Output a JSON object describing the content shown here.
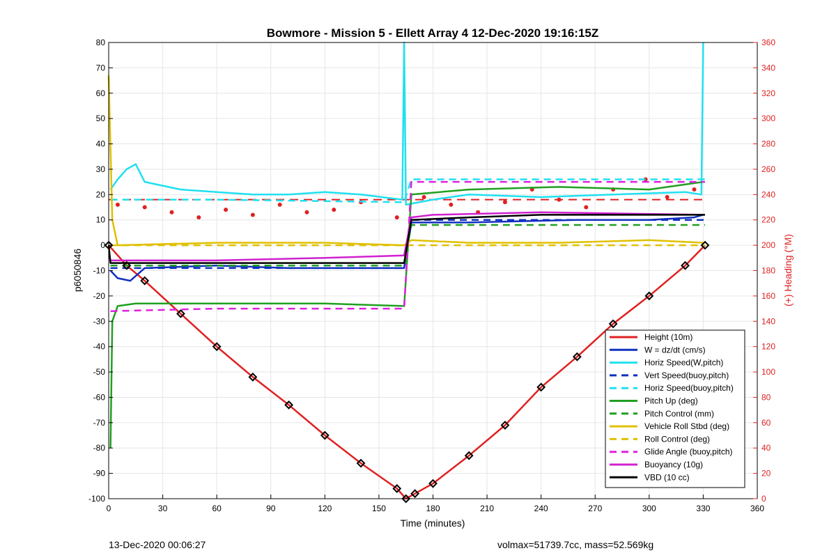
{
  "chart_data": {
    "type": "line",
    "title": "Bowmore - Mission 5 - Ellett Array 4 12-Dec-2020 19:16:15Z",
    "xlabel": "Time (minutes)",
    "ylabel_left": "p6050846",
    "ylabel_right": "(+) Heading (°M)",
    "xlim": [
      0,
      360
    ],
    "ylim_left": [
      -100,
      80
    ],
    "ylim_right": [
      0,
      360
    ],
    "x_ticks": [
      0,
      30,
      60,
      90,
      120,
      150,
      180,
      210,
      240,
      270,
      300,
      330,
      360
    ],
    "y_left_ticks": [
      80,
      70,
      60,
      50,
      40,
      30,
      20,
      10,
      0,
      -10,
      -20,
      -30,
      -40,
      -50,
      -60,
      -70,
      -80,
      -90,
      -100
    ],
    "y_right_ticks": [
      360,
      340,
      320,
      300,
      280,
      260,
      240,
      220,
      200,
      180,
      160,
      140,
      120,
      100,
      80,
      60,
      40,
      20,
      0
    ],
    "grid": true,
    "legend_position": "bottom-right",
    "series": [
      {
        "name": "Height (10m)",
        "color": "#e02020",
        "style": "solid",
        "points": [
          [
            0,
            0
          ],
          [
            10,
            -8
          ],
          [
            20,
            -14
          ],
          [
            40,
            -27
          ],
          [
            60,
            -40
          ],
          [
            80,
            -52
          ],
          [
            100,
            -63
          ],
          [
            120,
            -75
          ],
          [
            140,
            -86
          ],
          [
            160,
            -96
          ],
          [
            165,
            -100
          ],
          [
            170,
            -98
          ],
          [
            180,
            -94
          ],
          [
            200,
            -83
          ],
          [
            220,
            -71
          ],
          [
            240,
            -56
          ],
          [
            260,
            -44
          ],
          [
            280,
            -31
          ],
          [
            300,
            -20
          ],
          [
            320,
            -8
          ],
          [
            331,
            0
          ]
        ]
      },
      {
        "name": "W = dz/dt (cm/s)",
        "color": "#1030c0",
        "style": "solid",
        "points": [
          [
            1,
            -10
          ],
          [
            5,
            -13
          ],
          [
            12,
            -14
          ],
          [
            20,
            -9
          ],
          [
            60,
            -8
          ],
          [
            100,
            -9
          ],
          [
            140,
            -9
          ],
          [
            164,
            -9
          ],
          [
            168,
            9
          ],
          [
            200,
            9
          ],
          [
            260,
            10
          ],
          [
            300,
            10
          ],
          [
            325,
            11
          ],
          [
            330,
            12
          ]
        ]
      },
      {
        "name": "Horiz Speed(W,pitch)",
        "color": "#20e0f0",
        "style": "solid",
        "points": [
          [
            1,
            22
          ],
          [
            5,
            26
          ],
          [
            10,
            30
          ],
          [
            15,
            32
          ],
          [
            20,
            25
          ],
          [
            40,
            22
          ],
          [
            60,
            21
          ],
          [
            80,
            20
          ],
          [
            100,
            20
          ],
          [
            120,
            21
          ],
          [
            140,
            20
          ],
          [
            163,
            18
          ],
          [
            164,
            80
          ],
          [
            165,
            16
          ],
          [
            180,
            18
          ],
          [
            200,
            20
          ],
          [
            240,
            19
          ],
          [
            280,
            20
          ],
          [
            320,
            21
          ],
          [
            329,
            20
          ],
          [
            330,
            80
          ]
        ]
      },
      {
        "name": "Vert Speed(buoy,pitch)",
        "color": "#1030c0",
        "style": "dashed",
        "points": [
          [
            1,
            -9
          ],
          [
            60,
            -9
          ],
          [
            164,
            -9
          ],
          [
            168,
            10
          ],
          [
            331,
            10
          ]
        ]
      },
      {
        "name": "Horiz Speed(buoy,pitch)",
        "color": "#20e0f0",
        "style": "dashed",
        "points": [
          [
            1,
            18
          ],
          [
            60,
            18
          ],
          [
            164,
            17
          ],
          [
            168,
            26
          ],
          [
            331,
            26
          ]
        ]
      },
      {
        "name": "Pitch Up (deg)",
        "color": "#20a020",
        "style": "solid",
        "points": [
          [
            1,
            -80
          ],
          [
            2,
            -30
          ],
          [
            5,
            -24
          ],
          [
            15,
            -23
          ],
          [
            60,
            -23
          ],
          [
            120,
            -23
          ],
          [
            164,
            -24
          ],
          [
            168,
            20
          ],
          [
            200,
            22
          ],
          [
            250,
            23
          ],
          [
            300,
            22
          ],
          [
            330,
            25
          ]
        ]
      },
      {
        "name": "Pitch Control (mm)",
        "color": "#20a020",
        "style": "dashed",
        "points": [
          [
            1,
            -8
          ],
          [
            60,
            -8
          ],
          [
            164,
            -8
          ],
          [
            168,
            8
          ],
          [
            331,
            8
          ]
        ]
      },
      {
        "name": "Vehicle Roll Stbd (deg)",
        "color": "#e0c000",
        "style": "solid",
        "points": [
          [
            0,
            67
          ],
          [
            2,
            10
          ],
          [
            5,
            0
          ],
          [
            60,
            1
          ],
          [
            120,
            1
          ],
          [
            164,
            0
          ],
          [
            168,
            2
          ],
          [
            200,
            1
          ],
          [
            250,
            1
          ],
          [
            300,
            2
          ],
          [
            330,
            1
          ]
        ]
      },
      {
        "name": "Roll Control (deg)",
        "color": "#e0c000",
        "style": "dashed",
        "points": [
          [
            1,
            0
          ],
          [
            164,
            0
          ],
          [
            168,
            0
          ],
          [
            331,
            0
          ]
        ]
      },
      {
        "name": "Glide Angle (buoy,pitch)",
        "color": "#e020e0",
        "style": "dashed",
        "points": [
          [
            1,
            -26
          ],
          [
            60,
            -25
          ],
          [
            164,
            -25
          ],
          [
            168,
            25
          ],
          [
            331,
            25
          ]
        ]
      },
      {
        "name": "Buoyancy (10g)",
        "color": "#d020d0",
        "style": "solid",
        "points": [
          [
            1,
            -6
          ],
          [
            60,
            -6
          ],
          [
            120,
            -5
          ],
          [
            164,
            -4
          ],
          [
            168,
            11
          ],
          [
            180,
            12
          ],
          [
            240,
            13
          ],
          [
            330,
            12
          ]
        ]
      },
      {
        "name": "VBD (10 cc)",
        "color": "#000000",
        "style": "solid",
        "points": [
          [
            0,
            0
          ],
          [
            1,
            -7
          ],
          [
            60,
            -7
          ],
          [
            164,
            -7
          ],
          [
            168,
            10
          ],
          [
            200,
            11
          ],
          [
            240,
            12
          ],
          [
            331,
            12
          ]
        ]
      }
    ],
    "heading_series": {
      "color": "#e02020",
      "points": [
        [
          5,
          232
        ],
        [
          20,
          230
        ],
        [
          35,
          226
        ],
        [
          50,
          222
        ],
        [
          65,
          228
        ],
        [
          80,
          224
        ],
        [
          95,
          232
        ],
        [
          110,
          226
        ],
        [
          125,
          228
        ],
        [
          140,
          234
        ],
        [
          160,
          222
        ],
        [
          175,
          238
        ],
        [
          190,
          232
        ],
        [
          205,
          226
        ],
        [
          220,
          234
        ],
        [
          235,
          244
        ],
        [
          250,
          236
        ],
        [
          265,
          230
        ],
        [
          280,
          244
        ],
        [
          298,
          252
        ],
        [
          310,
          238
        ],
        [
          325,
          244
        ]
      ]
    },
    "heading_target": 236
  },
  "footer": {
    "left": "13-Dec-2020 00:06:27",
    "right": "volmax=51739.7cc, mass=52.569kg"
  }
}
